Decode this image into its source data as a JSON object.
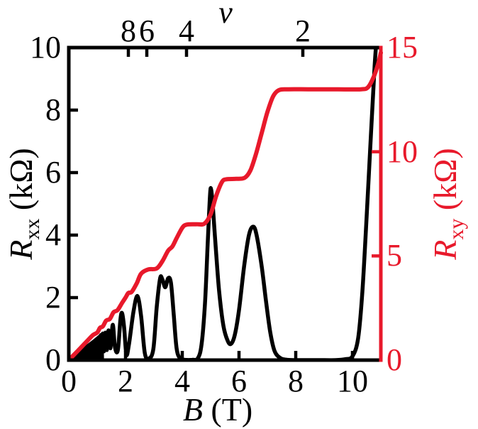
{
  "figure": {
    "accent_color": "#e8192b",
    "black_color": "#000000",
    "background": "#ffffff"
  },
  "chart_data": {
    "type": "line",
    "title": "",
    "top_axis": {
      "label": "ν",
      "ticks": [
        {
          "label": "8",
          "B": 2.1
        },
        {
          "label": "6",
          "B": 2.75
        },
        {
          "label": "4",
          "B": 4.15
        },
        {
          "label": "2",
          "B": 8.25
        }
      ]
    },
    "x_axis": {
      "label_main": "B",
      "label_unit": "(T)",
      "range": [
        0,
        11
      ],
      "ticks": [
        0,
        2,
        4,
        6,
        8,
        10
      ]
    },
    "y_left": {
      "label_main": "R",
      "label_sub": "xx",
      "label_unit": "(kΩ)",
      "range": [
        0,
        10
      ],
      "ticks": [
        0,
        2,
        4,
        6,
        8,
        10
      ],
      "color": "#000000"
    },
    "y_right": {
      "label_main": "R",
      "label_sub": "xy",
      "label_unit": "(kΩ)",
      "range": [
        0,
        15
      ],
      "ticks": [
        0,
        5,
        10,
        15
      ],
      "color": "#e8192b"
    },
    "series": [
      {
        "name": "Rxx",
        "axis": "left",
        "color": "#000000",
        "points": [
          [
            1.13,
            0.8
          ],
          [
            1.16,
            0.25
          ],
          [
            1.2,
            0.85
          ],
          [
            1.24,
            0.28
          ],
          [
            1.29,
            0.88
          ],
          [
            1.34,
            0.32
          ],
          [
            1.4,
            0.95
          ],
          [
            1.47,
            0.38
          ],
          [
            1.55,
            1.13
          ],
          [
            1.63,
            0.4
          ],
          [
            1.73,
            0.32
          ],
          [
            1.82,
            1.3
          ],
          [
            1.88,
            1.5
          ],
          [
            1.95,
            1.05
          ],
          [
            2.03,
            0.18
          ],
          [
            2.12,
            0.5
          ],
          [
            2.28,
            1.55
          ],
          [
            2.42,
            2.05
          ],
          [
            2.55,
            1.4
          ],
          [
            2.68,
            0.22
          ],
          [
            2.82,
            0.05
          ],
          [
            2.98,
            0.35
          ],
          [
            3.1,
            1.7
          ],
          [
            3.22,
            2.62
          ],
          [
            3.3,
            2.58
          ],
          [
            3.4,
            2.33
          ],
          [
            3.5,
            2.62
          ],
          [
            3.6,
            2.48
          ],
          [
            3.7,
            1.45
          ],
          [
            3.8,
            0.38
          ],
          [
            3.92,
            0.06
          ],
          [
            4.1,
            0.01
          ],
          [
            4.35,
            0.01
          ],
          [
            4.55,
            0.06
          ],
          [
            4.68,
            0.5
          ],
          [
            4.8,
            1.8
          ],
          [
            4.9,
            3.8
          ],
          [
            4.98,
            5.3
          ],
          [
            5.02,
            5.45
          ],
          [
            5.08,
            4.9
          ],
          [
            5.18,
            3.6
          ],
          [
            5.3,
            2.2
          ],
          [
            5.45,
            1.1
          ],
          [
            5.6,
            0.62
          ],
          [
            5.72,
            0.52
          ],
          [
            5.85,
            0.8
          ],
          [
            6.0,
            1.6
          ],
          [
            6.18,
            3.0
          ],
          [
            6.35,
            4.0
          ],
          [
            6.5,
            4.27
          ],
          [
            6.62,
            4.0
          ],
          [
            6.8,
            3.0
          ],
          [
            6.95,
            1.9
          ],
          [
            7.1,
            0.9
          ],
          [
            7.25,
            0.3
          ],
          [
            7.45,
            0.07
          ],
          [
            7.7,
            0.01
          ],
          [
            8.2,
            0.0
          ],
          [
            8.8,
            0.0
          ],
          [
            9.4,
            0.0
          ],
          [
            9.75,
            0.03
          ],
          [
            10.0,
            0.12
          ],
          [
            10.2,
            0.7
          ],
          [
            10.35,
            2.2
          ],
          [
            10.5,
            4.6
          ],
          [
            10.65,
            7.2
          ],
          [
            10.78,
            9.4
          ],
          [
            10.88,
            10.6
          ]
        ],
        "unresolved_wedge": [
          [
            0.04,
            0.0
          ],
          [
            0.3,
            0.18
          ],
          [
            0.6,
            0.42
          ],
          [
            0.9,
            0.63
          ],
          [
            1.1,
            0.78
          ],
          [
            1.17,
            0.84
          ],
          [
            1.19,
            0.1
          ],
          [
            1.19,
            0.0
          ]
        ]
      },
      {
        "name": "Rxy",
        "axis": "right",
        "color": "#e8192b",
        "points": [
          [
            0.0,
            0.0
          ],
          [
            0.3,
            0.42
          ],
          [
            0.6,
            0.85
          ],
          [
            0.85,
            1.2
          ],
          [
            1.0,
            1.32
          ],
          [
            1.1,
            1.55
          ],
          [
            1.2,
            1.62
          ],
          [
            1.32,
            1.9
          ],
          [
            1.45,
            1.98
          ],
          [
            1.58,
            2.3
          ],
          [
            1.72,
            2.4
          ],
          [
            1.88,
            2.75
          ],
          [
            2.0,
            3.0
          ],
          [
            2.1,
            3.22
          ],
          [
            2.22,
            3.28
          ],
          [
            2.4,
            3.7
          ],
          [
            2.55,
            4.15
          ],
          [
            2.8,
            4.35
          ],
          [
            3.1,
            4.4
          ],
          [
            3.3,
            4.75
          ],
          [
            3.5,
            5.25
          ],
          [
            3.65,
            5.45
          ],
          [
            3.8,
            5.85
          ],
          [
            4.0,
            6.35
          ],
          [
            4.15,
            6.5
          ],
          [
            4.5,
            6.52
          ],
          [
            4.78,
            6.55
          ],
          [
            5.0,
            7.0
          ],
          [
            5.2,
            7.9
          ],
          [
            5.4,
            8.55
          ],
          [
            5.55,
            8.68
          ],
          [
            5.9,
            8.7
          ],
          [
            6.2,
            8.75
          ],
          [
            6.4,
            9.1
          ],
          [
            6.6,
            9.9
          ],
          [
            6.8,
            10.9
          ],
          [
            7.0,
            11.9
          ],
          [
            7.2,
            12.65
          ],
          [
            7.4,
            12.95
          ],
          [
            7.7,
            13.0
          ],
          [
            8.5,
            13.0
          ],
          [
            9.5,
            13.0
          ],
          [
            10.3,
            13.0
          ],
          [
            10.55,
            13.1
          ],
          [
            10.75,
            13.6
          ],
          [
            10.9,
            14.2
          ],
          [
            11.0,
            14.75
          ]
        ]
      }
    ]
  }
}
